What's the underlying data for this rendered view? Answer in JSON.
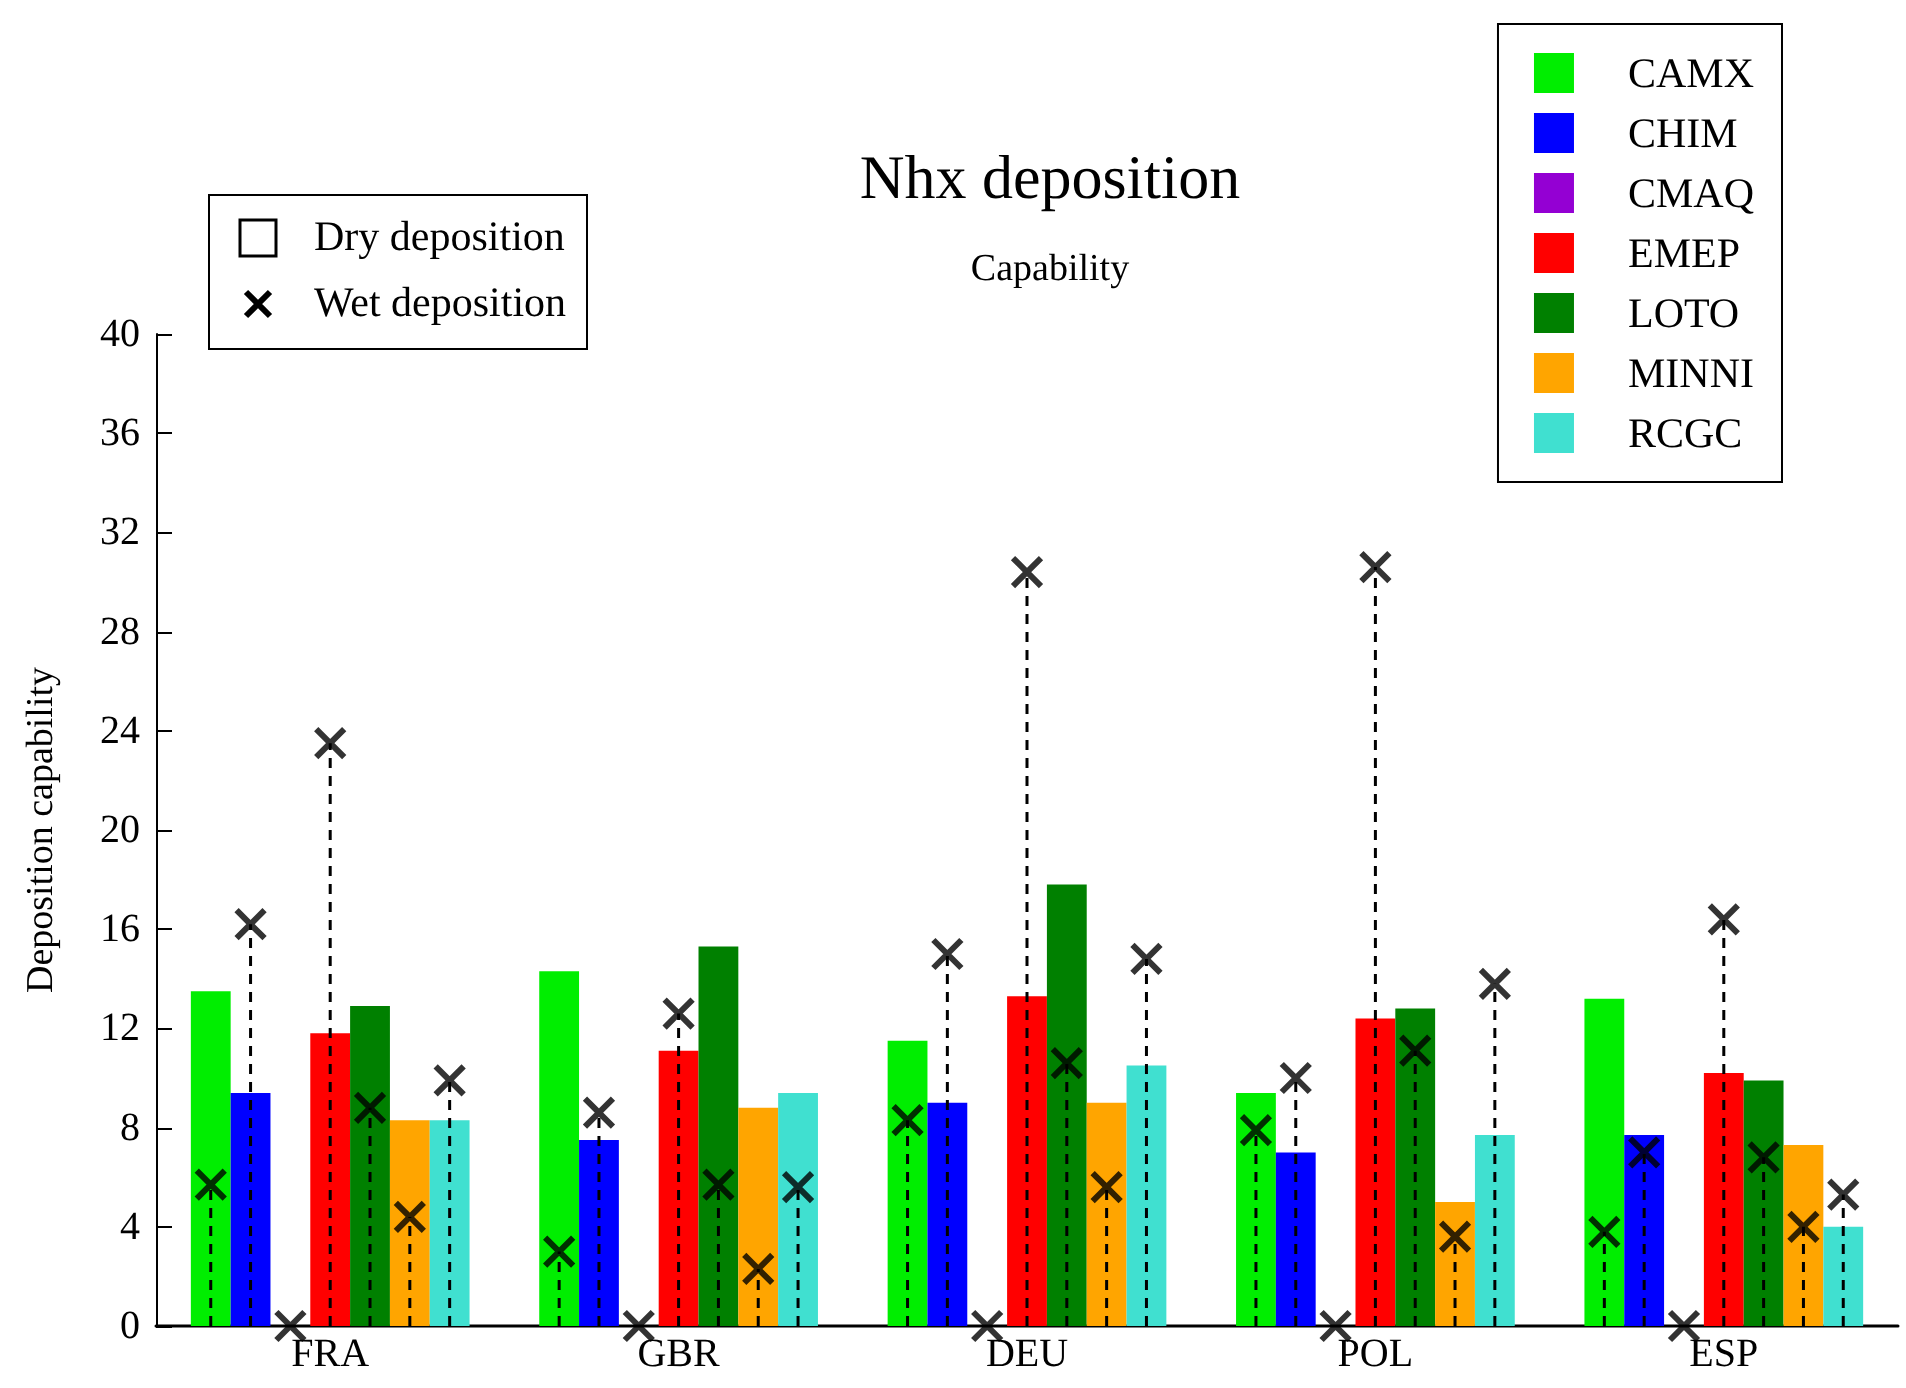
{
  "chart_data": {
    "type": "bar",
    "title": "Nhx deposition",
    "subtitle": "Capability",
    "ylabel": "Deposition capability",
    "categories": [
      "FRA",
      "GBR",
      "DEU",
      "POL",
      "ESP"
    ],
    "series": [
      {
        "name": "CAMX",
        "color": "#00ee00",
        "values": [
          13.5,
          14.3,
          11.5,
          9.4,
          13.2
        ]
      },
      {
        "name": "CHIM",
        "color": "#0000ff",
        "values": [
          9.4,
          7.5,
          9.0,
          7.0,
          7.7
        ]
      },
      {
        "name": "CMAQ",
        "color": "#9400d3",
        "values": [
          0,
          0,
          0,
          0,
          0
        ]
      },
      {
        "name": "EMEP",
        "color": "#ff0000",
        "values": [
          11.8,
          11.1,
          13.3,
          12.4,
          10.2
        ]
      },
      {
        "name": "LOTO",
        "color": "#008000",
        "values": [
          12.9,
          15.3,
          17.8,
          12.8,
          9.9
        ]
      },
      {
        "name": "MINNI",
        "color": "#ffa500",
        "values": [
          8.3,
          8.8,
          9.0,
          5.0,
          7.3
        ]
      },
      {
        "name": "RCGC",
        "color": "#40e0d0",
        "values": [
          8.3,
          9.4,
          10.5,
          7.7,
          4.0
        ]
      },
      {
        "type": "lollipop",
        "color": "#000000",
        "values": [
          5.7,
          3.0,
          8.3,
          7.9,
          3.8
        ]
      },
      {
        "type": "lollipop",
        "color": "#000000",
        "values": [
          16.2,
          8.6,
          15.0,
          10.0,
          7.0
        ]
      },
      {
        "type": "lollipop",
        "color": "#000000",
        "values": [
          0,
          0,
          0,
          0,
          0
        ]
      },
      {
        "type": "lollipop",
        "color": "#000000",
        "values": [
          23.5,
          12.6,
          30.4,
          30.6,
          16.4
        ]
      },
      {
        "type": "lollipop",
        "color": "#000000",
        "values": [
          8.8,
          5.7,
          10.6,
          11.1,
          6.8
        ]
      },
      {
        "type": "lollipop",
        "color": "#000000",
        "values": [
          4.4,
          2.3,
          5.6,
          3.6,
          4.0
        ]
      },
      {
        "type": "lollipop",
        "color": "#000000",
        "values": [
          9.9,
          5.6,
          14.8,
          13.8,
          5.3
        ]
      }
    ],
    "ylim": [
      0,
      40
    ],
    "yticks": [
      0,
      4,
      8,
      12,
      16,
      20,
      24,
      28,
      32,
      36,
      40
    ],
    "legend": "top right",
    "marker": "cross",
    "line_style": "dashed",
    "annotations": [
      "Dry deposition",
      "Wet deposition"
    ]
  }
}
